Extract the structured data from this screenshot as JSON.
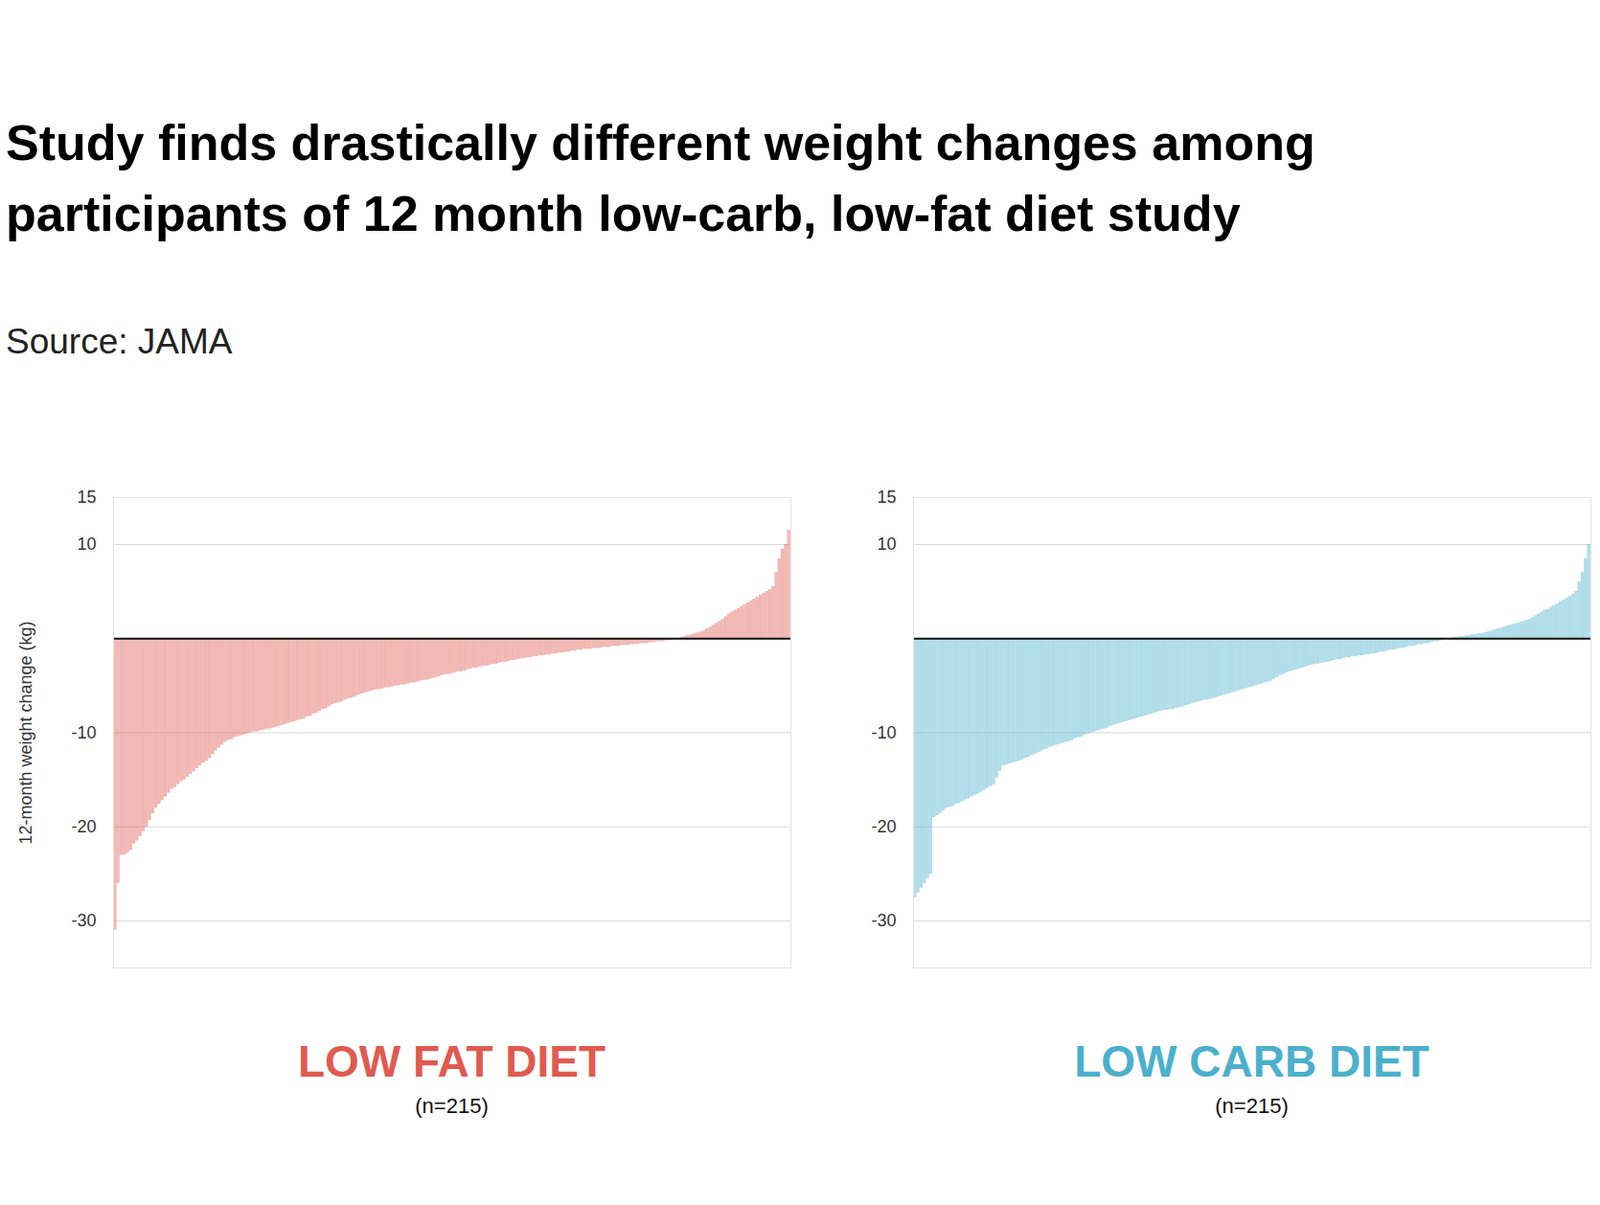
{
  "title": "Study finds drastically different weight changes among participants of 12 month low-carb, low-fat diet study",
  "subtitle": "Source: JAMA",
  "chart_data": [
    {
      "type": "bar",
      "title": "LOW FAT DIET",
      "subtitle": "(n=215)",
      "y_label": "12-month weight change (kg)",
      "color": "#e05a50",
      "ylim": [
        -35,
        15
      ],
      "yticks": [
        15,
        10,
        -10,
        -20,
        -30
      ],
      "grid": true,
      "tick_labels": "y",
      "values": [
        -31,
        -26,
        -23,
        -23,
        -22.8,
        -22.5,
        -21.8,
        -21.5,
        -21,
        -20.5,
        -20,
        -19.3,
        -18.6,
        -18,
        -17.6,
        -17.2,
        -16.8,
        -16.4,
        -16,
        -15.8,
        -15.5,
        -15.2,
        -15,
        -14.7,
        -14.4,
        -14.1,
        -13.8,
        -13.5,
        -13.2,
        -13,
        -12.7,
        -12.3,
        -11.9,
        -11.6,
        -11.3,
        -11,
        -10.8,
        -10.7,
        -10.5,
        -10.4,
        -10.3,
        -10.2,
        -10.1,
        -10,
        -9.9,
        -9.9,
        -9.8,
        -9.7,
        -9.6,
        -9.6,
        -9.5,
        -9.4,
        -9.3,
        -9.2,
        -9.1,
        -9,
        -8.9,
        -8.8,
        -8.7,
        -8.6,
        -8.5,
        -8.3,
        -8.2,
        -8,
        -7.9,
        -7.7,
        -7.5,
        -7.4,
        -7.2,
        -7,
        -6.9,
        -6.8,
        -6.7,
        -6.5,
        -6.4,
        -6.3,
        -6.2,
        -6,
        -5.9,
        -5.8,
        -5.7,
        -5.6,
        -5.5,
        -5.4,
        -5.4,
        -5.3,
        -5.2,
        -5.2,
        -5.1,
        -5,
        -5,
        -4.9,
        -4.9,
        -4.8,
        -4.7,
        -4.7,
        -4.6,
        -4.5,
        -4.4,
        -4.4,
        -4.3,
        -4.2,
        -4.1,
        -4,
        -3.9,
        -3.8,
        -3.8,
        -3.7,
        -3.6,
        -3.5,
        -3.5,
        -3.4,
        -3.3,
        -3.2,
        -3.1,
        -3.1,
        -3,
        -2.9,
        -2.9,
        -2.8,
        -2.7,
        -2.7,
        -2.6,
        -2.5,
        -2.5,
        -2.4,
        -2.3,
        -2.3,
        -2.2,
        -2.1,
        -2.1,
        -2,
        -2,
        -1.9,
        -1.9,
        -1.8,
        -1.8,
        -1.7,
        -1.7,
        -1.6,
        -1.6,
        -1.5,
        -1.5,
        -1.4,
        -1.4,
        -1.3,
        -1.3,
        -1.2,
        -1.2,
        -1.1,
        -1.1,
        -1.1,
        -1,
        -1,
        -1,
        -0.9,
        -0.9,
        -0.9,
        -0.8,
        -0.8,
        -0.8,
        -0.7,
        -0.7,
        -0.7,
        -0.6,
        -0.6,
        -0.6,
        -0.5,
        -0.5,
        -0.5,
        -0.4,
        -0.4,
        -0.3,
        -0.3,
        -0.3,
        -0.2,
        -0.2,
        -0.1,
        -0.1,
        0,
        0.1,
        0.2,
        0.3,
        0.4,
        0.5,
        0.6,
        0.7,
        0.8,
        1,
        1.2,
        1.4,
        1.6,
        1.8,
        2,
        2.3,
        2.6,
        2.8,
        3,
        3.2,
        3.4,
        3.6,
        3.8,
        4,
        4.2,
        4.4,
        4.6,
        4.8,
        5,
        5.2,
        5.5,
        7,
        8.5,
        9.5,
        10,
        11.5
      ]
    },
    {
      "type": "bar",
      "title": "LOW CARB DIET",
      "subtitle": "(n=215)",
      "color": "#4bb0cc",
      "ylim": [
        -35,
        15
      ],
      "yticks": [
        15,
        10,
        -10,
        -20,
        -30
      ],
      "grid": true,
      "tick_labels": "y",
      "values": [
        -27.5,
        -27,
        -26.5,
        -26,
        -25.5,
        -25,
        -19,
        -18.8,
        -18.6,
        -18.3,
        -18,
        -17.9,
        -17.8,
        -17.6,
        -17.5,
        -17.3,
        -17.1,
        -17,
        -16.8,
        -16.6,
        -16.5,
        -16.3,
        -16.1,
        -15.9,
        -15.7,
        -15.5,
        -14.8,
        -14.1,
        -13.5,
        -13.4,
        -13.3,
        -13.2,
        -13.1,
        -13,
        -12.9,
        -12.7,
        -12.6,
        -12.4,
        -12.3,
        -12.1,
        -12,
        -11.8,
        -11.7,
        -11.5,
        -11.4,
        -11.3,
        -11.2,
        -11.1,
        -11,
        -10.9,
        -10.8,
        -10.6,
        -10.5,
        -10.4,
        -10.2,
        -10.1,
        -10,
        -9.9,
        -9.8,
        -9.7,
        -9.6,
        -9.5,
        -9.3,
        -9.2,
        -9.1,
        -9,
        -8.9,
        -8.8,
        -8.7,
        -8.6,
        -8.5,
        -8.4,
        -8.3,
        -8.2,
        -8.1,
        -8,
        -7.9,
        -7.8,
        -7.7,
        -7.6,
        -7.6,
        -7.5,
        -7.5,
        -7.4,
        -7.3,
        -7.2,
        -7.1,
        -7,
        -6.9,
        -6.8,
        -6.7,
        -6.6,
        -6.5,
        -6.5,
        -6.4,
        -6.3,
        -6.2,
        -6.1,
        -6,
        -5.9,
        -5.8,
        -5.7,
        -5.6,
        -5.5,
        -5.4,
        -5.3,
        -5.2,
        -5.1,
        -5,
        -4.9,
        -4.8,
        -4.7,
        -4.6,
        -4.5,
        -4.3,
        -4.1,
        -3.9,
        -3.8,
        -3.6,
        -3.5,
        -3.4,
        -3.3,
        -3.2,
        -3.1,
        -3,
        -2.9,
        -2.8,
        -2.7,
        -2.7,
        -2.6,
        -2.5,
        -2.5,
        -2.4,
        -2.3,
        -2.2,
        -2.2,
        -2.1,
        -2,
        -2,
        -1.9,
        -1.9,
        -1.8,
        -1.8,
        -1.7,
        -1.7,
        -1.6,
        -1.6,
        -1.5,
        -1.4,
        -1.4,
        -1.3,
        -1.2,
        -1.2,
        -1.1,
        -1,
        -1,
        -0.9,
        -0.8,
        -0.8,
        -0.7,
        -0.6,
        -0.6,
        -0.5,
        -0.5,
        -0.4,
        -0.3,
        -0.3,
        -0.2,
        -0.1,
        0,
        0,
        0.1,
        0.1,
        0.2,
        0.2,
        0.3,
        0.3,
        0.4,
        0.4,
        0.5,
        0.5,
        0.6,
        0.7,
        0.8,
        0.9,
        1,
        1.1,
        1.2,
        1.3,
        1.4,
        1.5,
        1.6,
        1.7,
        1.8,
        1.9,
        2,
        2.2,
        2.4,
        2.6,
        2.8,
        3,
        3.1,
        3.3,
        3.5,
        3.7,
        3.9,
        4.1,
        4.3,
        4.5,
        4.7,
        5,
        6,
        7,
        8.5,
        10
      ]
    }
  ]
}
